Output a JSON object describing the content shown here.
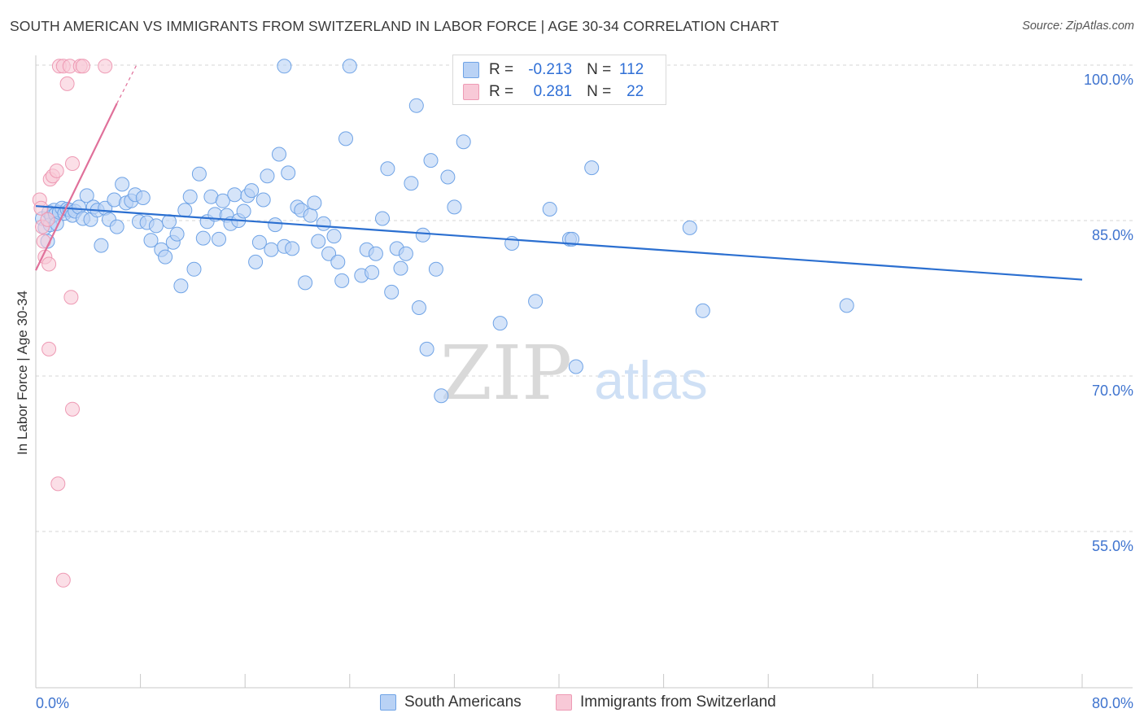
{
  "header": {
    "title": "SOUTH AMERICAN VS IMMIGRANTS FROM SWITZERLAND IN LABOR FORCE | AGE 30-34 CORRELATION CHART",
    "source": "Source: ZipAtlas.com"
  },
  "watermark": {
    "part1": "ZIP",
    "part2": "atlas"
  },
  "stats_legend": {
    "rows": [
      {
        "r_label": "R =",
        "r_value": "-0.213",
        "n_label": "N =",
        "n_value": "112",
        "color": "#6fa3e6"
      },
      {
        "r_label": "R =",
        "r_value": "0.281",
        "n_label": "N =",
        "n_value": "22",
        "color": "#ee9ab4"
      }
    ]
  },
  "colors": {
    "blue_fill": "#b9d2f5",
    "blue_stroke": "#6fa3e6",
    "blue_line": "#2b6fd0",
    "pink_fill": "#f8c9d7",
    "pink_stroke": "#ee9ab4",
    "pink_line": "#e0709a",
    "axis_text": "#3f74cf",
    "grid": "#d5d5d5"
  },
  "chart_data": {
    "type": "scatter",
    "title": "SOUTH AMERICAN VS IMMIGRANTS FROM SWITZERLAND IN LABOR FORCE | AGE 30-34 CORRELATION CHART",
    "xlabel": "",
    "ylabel": "In Labor Force | Age 30-34",
    "xlim": [
      0,
      80
    ],
    "ylim": [
      40,
      100
    ],
    "x_tick_labels": [
      "0.0%",
      "80.0%"
    ],
    "y_ticks": [
      55,
      70,
      85,
      100
    ],
    "y_tick_labels": [
      "55.0%",
      "70.0%",
      "85.0%",
      "100.0%"
    ],
    "grid": "horizontal dashed",
    "legend": "bottom-center",
    "series": [
      {
        "name": "South Americans",
        "color": "#6fa3e6",
        "trend": {
          "x": [
            0,
            80
          ],
          "y": [
            86.4,
            79.3
          ]
        },
        "points": [
          [
            0.5,
            85.2
          ],
          [
            0.7,
            84.3
          ],
          [
            0.9,
            83.0
          ],
          [
            1.0,
            85.8
          ],
          [
            1.1,
            84.6
          ],
          [
            1.2,
            85.4
          ],
          [
            1.4,
            86.0
          ],
          [
            1.5,
            85.6
          ],
          [
            1.6,
            84.7
          ],
          [
            1.8,
            85.8
          ],
          [
            2.0,
            86.2
          ],
          [
            2.2,
            85.7
          ],
          [
            2.4,
            86.1
          ],
          [
            2.6,
            86.0
          ],
          [
            2.8,
            85.5
          ],
          [
            3.0,
            85.9
          ],
          [
            3.3,
            86.3
          ],
          [
            3.6,
            85.2
          ],
          [
            3.9,
            87.4
          ],
          [
            4.2,
            85.1
          ],
          [
            4.4,
            86.3
          ],
          [
            4.7,
            86.0
          ],
          [
            5.0,
            82.6
          ],
          [
            5.3,
            86.2
          ],
          [
            5.6,
            85.1
          ],
          [
            6.0,
            87.0
          ],
          [
            6.2,
            84.4
          ],
          [
            6.6,
            88.5
          ],
          [
            6.9,
            86.7
          ],
          [
            7.3,
            86.9
          ],
          [
            7.6,
            87.5
          ],
          [
            7.9,
            84.9
          ],
          [
            8.2,
            87.2
          ],
          [
            8.5,
            84.8
          ],
          [
            8.8,
            83.1
          ],
          [
            9.2,
            84.5
          ],
          [
            9.6,
            82.2
          ],
          [
            9.9,
            81.5
          ],
          [
            10.2,
            84.9
          ],
          [
            10.5,
            82.9
          ],
          [
            10.8,
            83.7
          ],
          [
            11.1,
            78.7
          ],
          [
            11.4,
            86.0
          ],
          [
            11.8,
            87.3
          ],
          [
            12.1,
            80.3
          ],
          [
            12.5,
            89.5
          ],
          [
            12.8,
            83.3
          ],
          [
            13.1,
            84.9
          ],
          [
            13.4,
            87.3
          ],
          [
            13.7,
            85.6
          ],
          [
            14.0,
            83.2
          ],
          [
            14.3,
            86.9
          ],
          [
            14.6,
            85.5
          ],
          [
            14.9,
            84.7
          ],
          [
            15.2,
            87.5
          ],
          [
            15.5,
            85.0
          ],
          [
            15.9,
            85.9
          ],
          [
            16.2,
            87.4
          ],
          [
            16.5,
            87.9
          ],
          [
            16.8,
            81.0
          ],
          [
            17.1,
            82.9
          ],
          [
            17.4,
            87.0
          ],
          [
            17.7,
            89.3
          ],
          [
            18.0,
            82.2
          ],
          [
            18.3,
            84.6
          ],
          [
            18.6,
            91.4
          ],
          [
            19.0,
            82.5
          ],
          [
            19.3,
            89.6
          ],
          [
            19.6,
            82.3
          ],
          [
            20.0,
            86.3
          ],
          [
            20.3,
            86.0
          ],
          [
            20.6,
            79.0
          ],
          [
            21.0,
            85.5
          ],
          [
            21.3,
            86.7
          ],
          [
            21.6,
            83.0
          ],
          [
            22.0,
            84.7
          ],
          [
            22.4,
            81.8
          ],
          [
            22.8,
            83.5
          ],
          [
            23.1,
            81.0
          ],
          [
            23.4,
            79.2
          ],
          [
            23.7,
            92.9
          ],
          [
            24.0,
            99.9
          ],
          [
            24.9,
            79.7
          ],
          [
            25.3,
            82.2
          ],
          [
            25.7,
            80.0
          ],
          [
            26.0,
            81.8
          ],
          [
            26.5,
            85.2
          ],
          [
            26.9,
            90.0
          ],
          [
            27.2,
            78.1
          ],
          [
            27.6,
            82.3
          ],
          [
            27.9,
            80.4
          ],
          [
            28.3,
            81.8
          ],
          [
            28.7,
            88.6
          ],
          [
            29.1,
            96.1
          ],
          [
            29.3,
            76.6
          ],
          [
            29.6,
            83.6
          ],
          [
            29.9,
            72.6
          ],
          [
            30.2,
            90.8
          ],
          [
            30.6,
            80.3
          ],
          [
            31.0,
            68.1
          ],
          [
            31.5,
            89.2
          ],
          [
            32.0,
            86.3
          ],
          [
            32.7,
            92.6
          ],
          [
            35.5,
            75.1
          ],
          [
            36.4,
            82.8
          ],
          [
            38.2,
            77.2
          ],
          [
            39.3,
            86.1
          ],
          [
            40.8,
            83.2
          ],
          [
            41.0,
            83.2
          ],
          [
            41.3,
            70.9
          ],
          [
            42.5,
            90.1
          ],
          [
            50.0,
            84.3
          ],
          [
            51.0,
            76.3
          ],
          [
            62.0,
            76.8
          ],
          [
            19.0,
            99.9
          ]
        ]
      },
      {
        "name": "Immigrants from Switzerland",
        "color": "#ee9ab4",
        "trend": {
          "x": [
            0,
            6.2
          ],
          "y": [
            80.2,
            96.3
          ],
          "dashed_ext": {
            "x": [
              6.2,
              7.7
            ],
            "y": [
              96.3,
              100
            ]
          }
        },
        "points": [
          [
            0.3,
            87.0
          ],
          [
            0.4,
            86.2
          ],
          [
            0.5,
            84.4
          ],
          [
            0.6,
            83.0
          ],
          [
            0.7,
            81.5
          ],
          [
            0.9,
            85.1
          ],
          [
            1.0,
            80.8
          ],
          [
            1.1,
            89.0
          ],
          [
            1.3,
            89.3
          ],
          [
            1.6,
            89.8
          ],
          [
            1.8,
            99.9
          ],
          [
            2.1,
            99.9
          ],
          [
            2.4,
            98.2
          ],
          [
            2.6,
            99.9
          ],
          [
            2.7,
            77.6
          ],
          [
            2.8,
            90.5
          ],
          [
            1.0,
            72.6
          ],
          [
            2.8,
            66.8
          ],
          [
            1.7,
            59.6
          ],
          [
            2.1,
            50.3
          ],
          [
            3.4,
            99.9
          ],
          [
            3.6,
            99.9
          ],
          [
            5.3,
            99.9
          ]
        ]
      }
    ]
  },
  "bottom_legend": {
    "items": [
      {
        "label": "South Americans"
      },
      {
        "label": "Immigrants from Switzerland"
      }
    ]
  }
}
